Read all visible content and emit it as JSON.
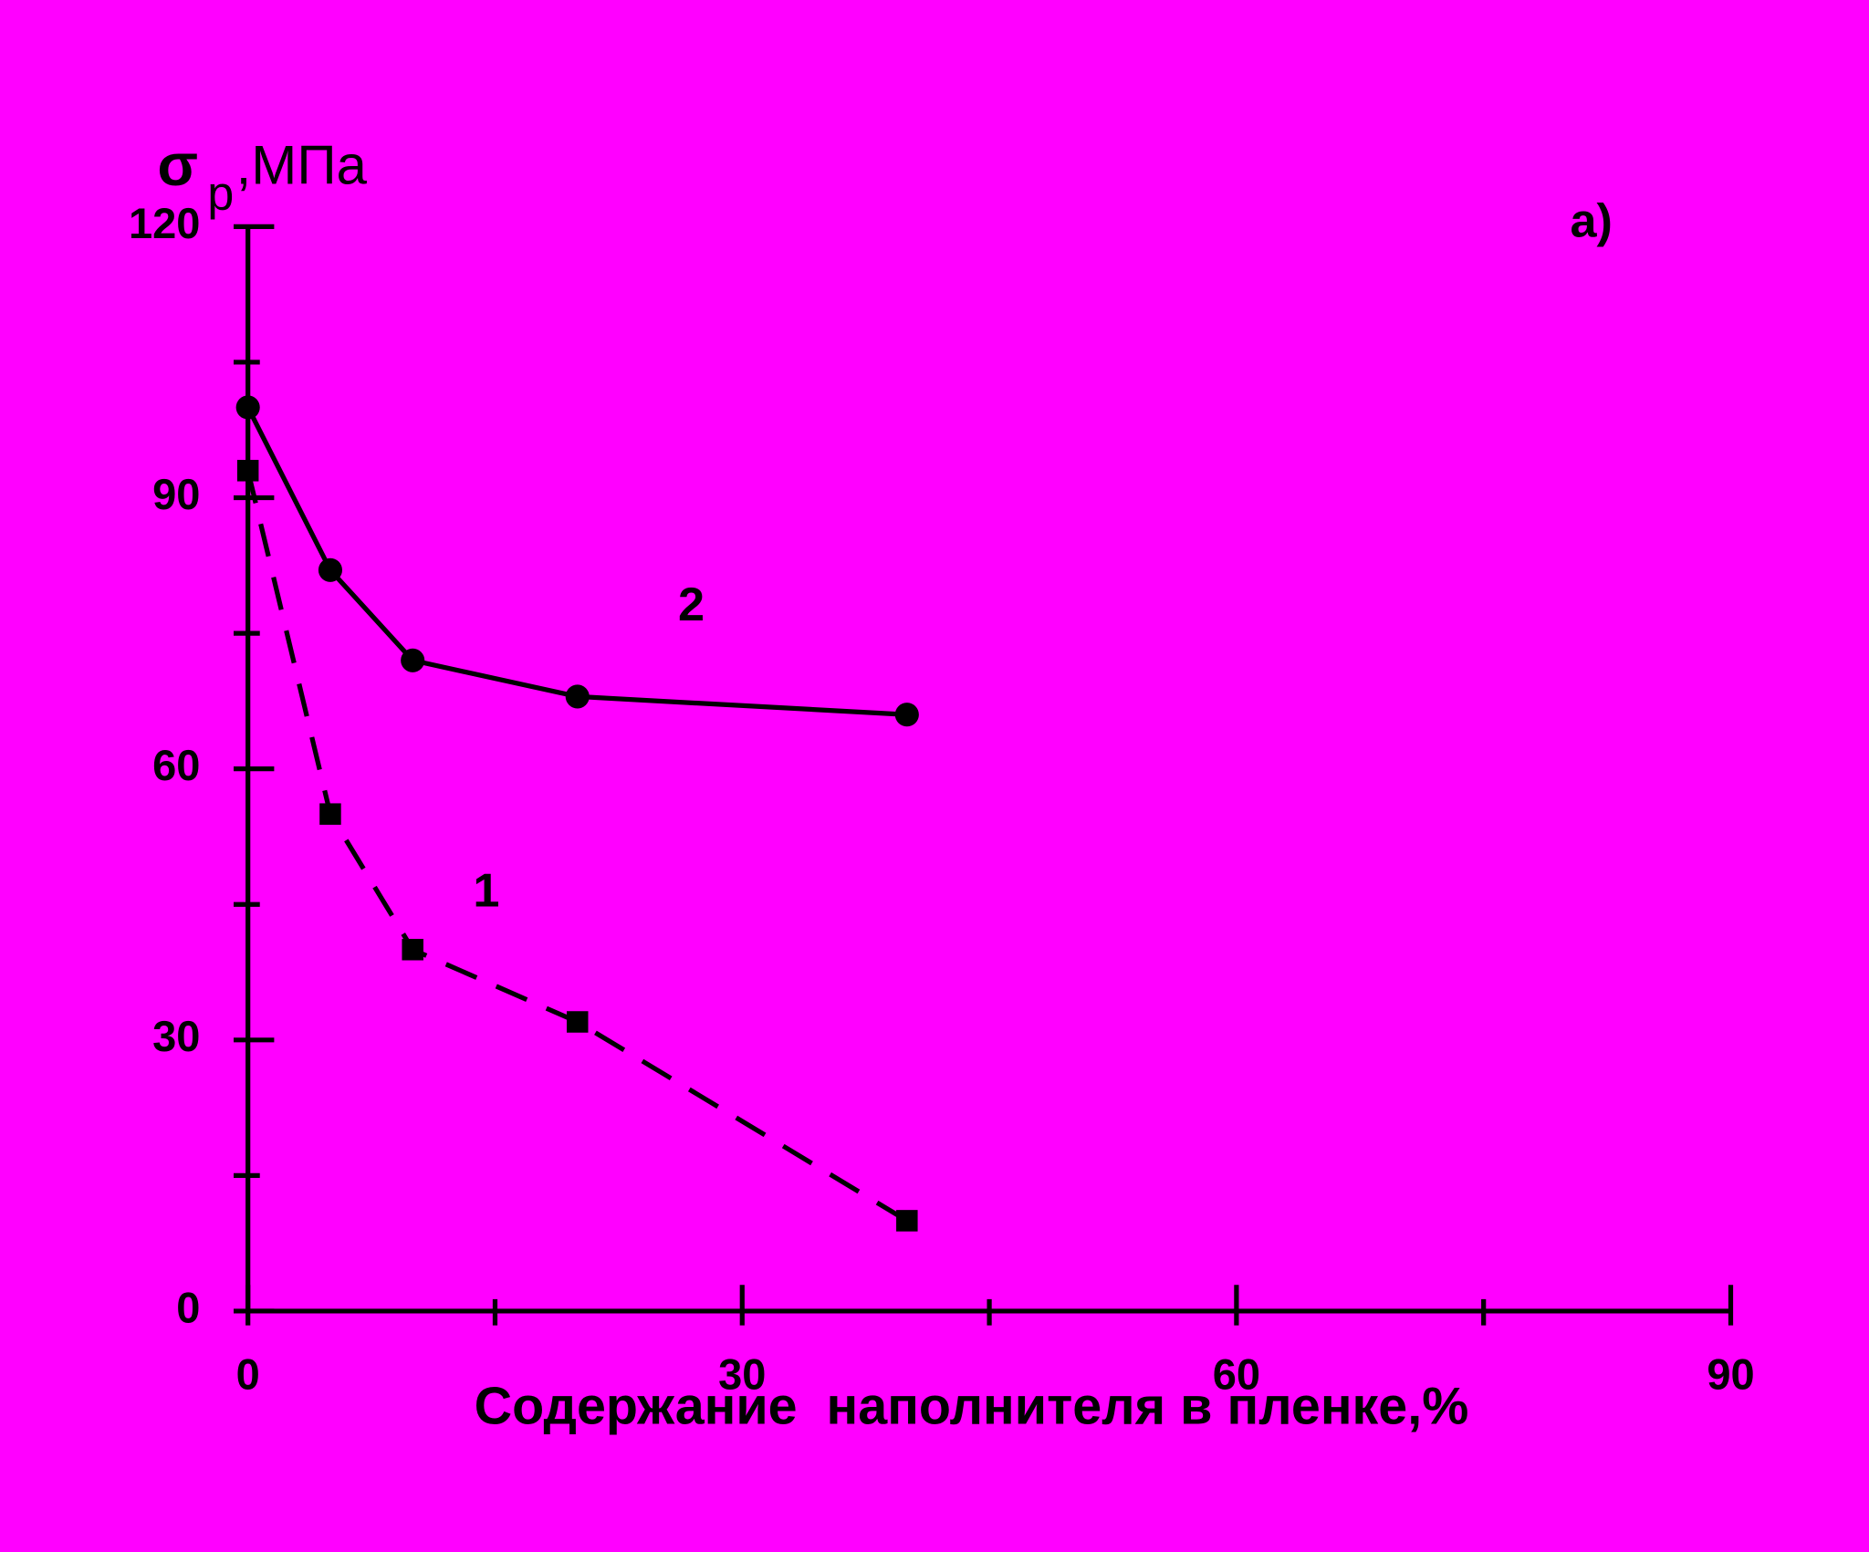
{
  "chart_data": {
    "type": "line",
    "ylabel": {
      "symbol": "σ",
      "subscript": "p",
      "unit": ",МПа"
    },
    "xlabel": "Содержание  наполнителя в пленке,%",
    "annotation": "a)",
    "xlim": [
      0,
      90
    ],
    "xticks": [
      0,
      30,
      60,
      90
    ],
    "xminorticks": [
      15,
      45,
      75
    ],
    "ylim": [
      0,
      120
    ],
    "yticks": [
      0,
      30,
      60,
      90,
      120
    ],
    "yminorticks": [
      15,
      45,
      75,
      105
    ],
    "x": [
      0,
      5,
      10,
      20,
      40
    ],
    "series": [
      {
        "name": "1",
        "color": "#000000",
        "marker": "square",
        "dashed": true,
        "values": [
          93,
          55,
          40,
          32,
          10
        ]
      },
      {
        "name": "2",
        "color": "#000000",
        "marker": "circle",
        "dashed": false,
        "values": [
          100,
          82,
          72,
          68,
          66
        ]
      }
    ]
  }
}
